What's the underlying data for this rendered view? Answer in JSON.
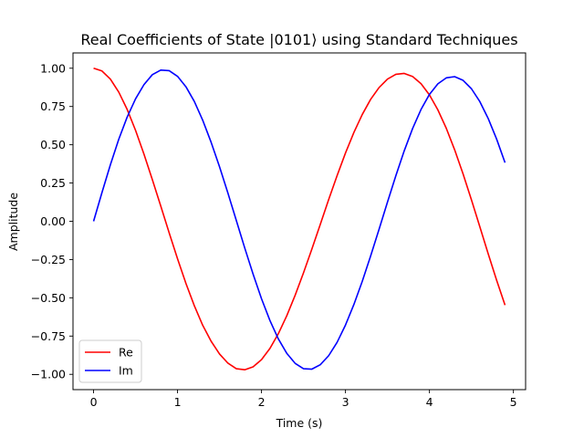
{
  "chart_data": {
    "type": "line",
    "title": "Real Coefficients of State |0101⟩ using Standard Techniques",
    "xlabel": "Time (s)",
    "ylabel": "Amplitude",
    "xlim": [
      -0.245,
      5.145
    ],
    "ylim": [
      -1.1,
      1.1
    ],
    "xticks": [
      "0",
      "1",
      "2",
      "3",
      "4",
      "5"
    ],
    "xtick_values": [
      0,
      1,
      2,
      3,
      4,
      5
    ],
    "yticks": [
      "−1.00",
      "−0.75",
      "−0.50",
      "−0.25",
      "0.00",
      "0.25",
      "0.50",
      "0.75",
      "1.00"
    ],
    "ytick_values": [
      -1.0,
      -0.75,
      -0.5,
      -0.25,
      0.0,
      0.25,
      0.5,
      0.75,
      1.0
    ],
    "legend_position": "lower-left",
    "grid": false,
    "x": [
      0.0,
      0.1,
      0.2,
      0.3,
      0.4,
      0.5,
      0.6,
      0.7,
      0.8,
      0.9,
      1.0,
      1.1,
      1.2,
      1.3,
      1.4,
      1.5,
      1.6,
      1.7,
      1.8,
      1.9,
      2.0,
      2.1,
      2.2,
      2.3,
      2.4,
      2.5,
      2.6,
      2.7,
      2.8,
      2.9,
      3.0,
      3.1,
      3.2,
      3.3,
      3.4,
      3.5,
      3.6,
      3.7,
      3.8,
      3.9,
      4.0,
      4.1,
      4.2,
      4.3,
      4.4,
      4.5,
      4.6,
      4.7,
      4.8,
      4.9
    ],
    "series": [
      {
        "name": "Re",
        "color": "#ff0000",
        "values": [
          1.0,
          0.982,
          0.929,
          0.844,
          0.731,
          0.594,
          0.439,
          0.272,
          0.1,
          -0.075,
          -0.245,
          -0.406,
          -0.552,
          -0.68,
          -0.784,
          -0.867,
          -0.927,
          -0.963,
          -0.97,
          -0.951,
          -0.904,
          -0.831,
          -0.735,
          -0.618,
          -0.484,
          -0.337,
          -0.181,
          -0.02,
          0.142,
          0.298,
          0.446,
          0.58,
          0.698,
          0.797,
          0.874,
          0.929,
          0.96,
          0.966,
          0.946,
          0.899,
          0.826,
          0.728,
          0.608,
          0.467,
          0.31,
          0.14,
          -0.036,
          -0.213,
          -0.385,
          -0.548
        ]
      },
      {
        "name": "Im",
        "color": "#0000ff",
        "values": [
          0.0,
          0.188,
          0.369,
          0.536,
          0.681,
          0.8,
          0.893,
          0.958,
          0.988,
          0.984,
          0.947,
          0.879,
          0.783,
          0.66,
          0.516,
          0.356,
          0.184,
          0.005,
          -0.174,
          -0.346,
          -0.506,
          -0.648,
          -0.768,
          -0.862,
          -0.928,
          -0.963,
          -0.966,
          -0.937,
          -0.878,
          -0.791,
          -0.678,
          -0.544,
          -0.392,
          -0.226,
          -0.052,
          0.125,
          0.298,
          0.461,
          0.607,
          0.731,
          0.829,
          0.898,
          0.937,
          0.945,
          0.921,
          0.866,
          0.782,
          0.671,
          0.537,
          0.383
        ]
      }
    ]
  }
}
